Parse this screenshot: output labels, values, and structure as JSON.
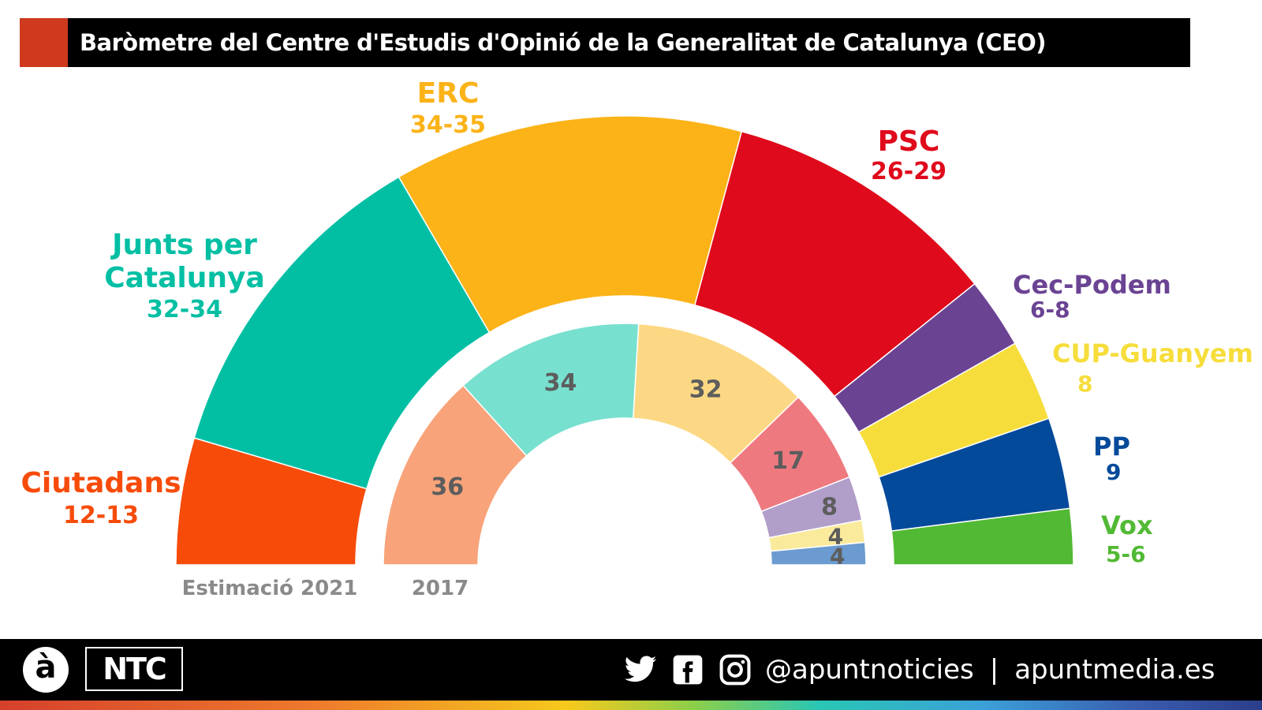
{
  "header": {
    "title": "Baròmetre del Centre d'Estudis d'Opinió de la Generalitat de Catalunya (CEO)",
    "accent_color": "#cf3a1e"
  },
  "chart_data": {
    "type": "pie",
    "subtype": "parliament-semicircle",
    "title": "Baròmetre del Centre d'Estudis d'Opinió de la Generalitat de Catalunya (CEO)",
    "total_seats": 135,
    "rings": [
      {
        "name": "Estimació 2021",
        "label": "Estimació 2021",
        "series": [
          {
            "party": "Ciutadans",
            "label": "12-13",
            "low": 12,
            "high": 13,
            "value": 12.5,
            "color": "#f74b0a"
          },
          {
            "party": "Junts per Catalunya",
            "label": "32-34",
            "low": 32,
            "high": 34,
            "value": 33,
            "color": "#02bfa4"
          },
          {
            "party": "ERC",
            "label": "34-35",
            "low": 34,
            "high": 35,
            "value": 34.5,
            "color": "#fbb318"
          },
          {
            "party": "PSC",
            "label": "26-29",
            "low": 26,
            "high": 29,
            "value": 27.5,
            "color": "#df0a1b"
          },
          {
            "party": "Cec-Podem",
            "label": "6-8",
            "low": 6,
            "high": 8,
            "value": 7,
            "color": "#6b4393"
          },
          {
            "party": "CUP-Guanyem",
            "label": "8",
            "low": 8,
            "high": 8,
            "value": 8,
            "color": "#f6dd3b"
          },
          {
            "party": "PP",
            "label": "9",
            "low": 9,
            "high": 9,
            "value": 9,
            "color": "#034a9a"
          },
          {
            "party": "Vox",
            "label": "5-6",
            "low": 5,
            "high": 6,
            "value": 5.5,
            "color": "#52b934"
          }
        ]
      },
      {
        "name": "2017",
        "label": "2017",
        "series": [
          {
            "party": "Ciutadans",
            "label": "36",
            "value": 36,
            "color": "#f9a37a"
          },
          {
            "party": "Junts per Catalunya",
            "label": "34",
            "value": 34,
            "color": "#78e0cf"
          },
          {
            "party": "ERC",
            "label": "32",
            "value": 32,
            "color": "#fdd884"
          },
          {
            "party": "PSC",
            "label": "17",
            "value": 17,
            "color": "#ee7a80"
          },
          {
            "party": "Cec-Podem",
            "label": "8",
            "value": 8,
            "color": "#b19ec9"
          },
          {
            "party": "CUP",
            "label": "4",
            "value": 4,
            "color": "#faea9b"
          },
          {
            "party": "PP",
            "label": "4",
            "value": 4,
            "color": "#6b9bd0"
          }
        ]
      }
    ],
    "outer_labels": [
      {
        "party": "Ciutadans",
        "name": "Ciutadans",
        "seats": "12-13"
      },
      {
        "party": "Junts per Catalunya",
        "name_lines": [
          "Junts per",
          "Catalunya"
        ],
        "seats": "32-34"
      },
      {
        "party": "ERC",
        "name": "ERC",
        "seats": "34-35"
      },
      {
        "party": "PSC",
        "name": "PSC",
        "seats": "26-29"
      },
      {
        "party": "Cec-Podem",
        "name": "Cec-Podem",
        "seats": "6-8"
      },
      {
        "party": "CUP-Guanyem",
        "name": "CUP-Guanyem",
        "seats": "8"
      },
      {
        "party": "PP",
        "name": "PP",
        "seats": "9"
      },
      {
        "party": "Vox",
        "name": "Vox",
        "seats": "5-6"
      }
    ],
    "inner_value_color": "#5d5d5d",
    "ring_label_color": "#8a8a8a"
  },
  "footer": {
    "logo_a": "à",
    "logo_ntc": "NTC",
    "social_icons": [
      "twitter-icon",
      "facebook-icon",
      "instagram-icon"
    ],
    "handle": "@apuntnoticies",
    "separator": "|",
    "website": "apuntmedia.es"
  }
}
